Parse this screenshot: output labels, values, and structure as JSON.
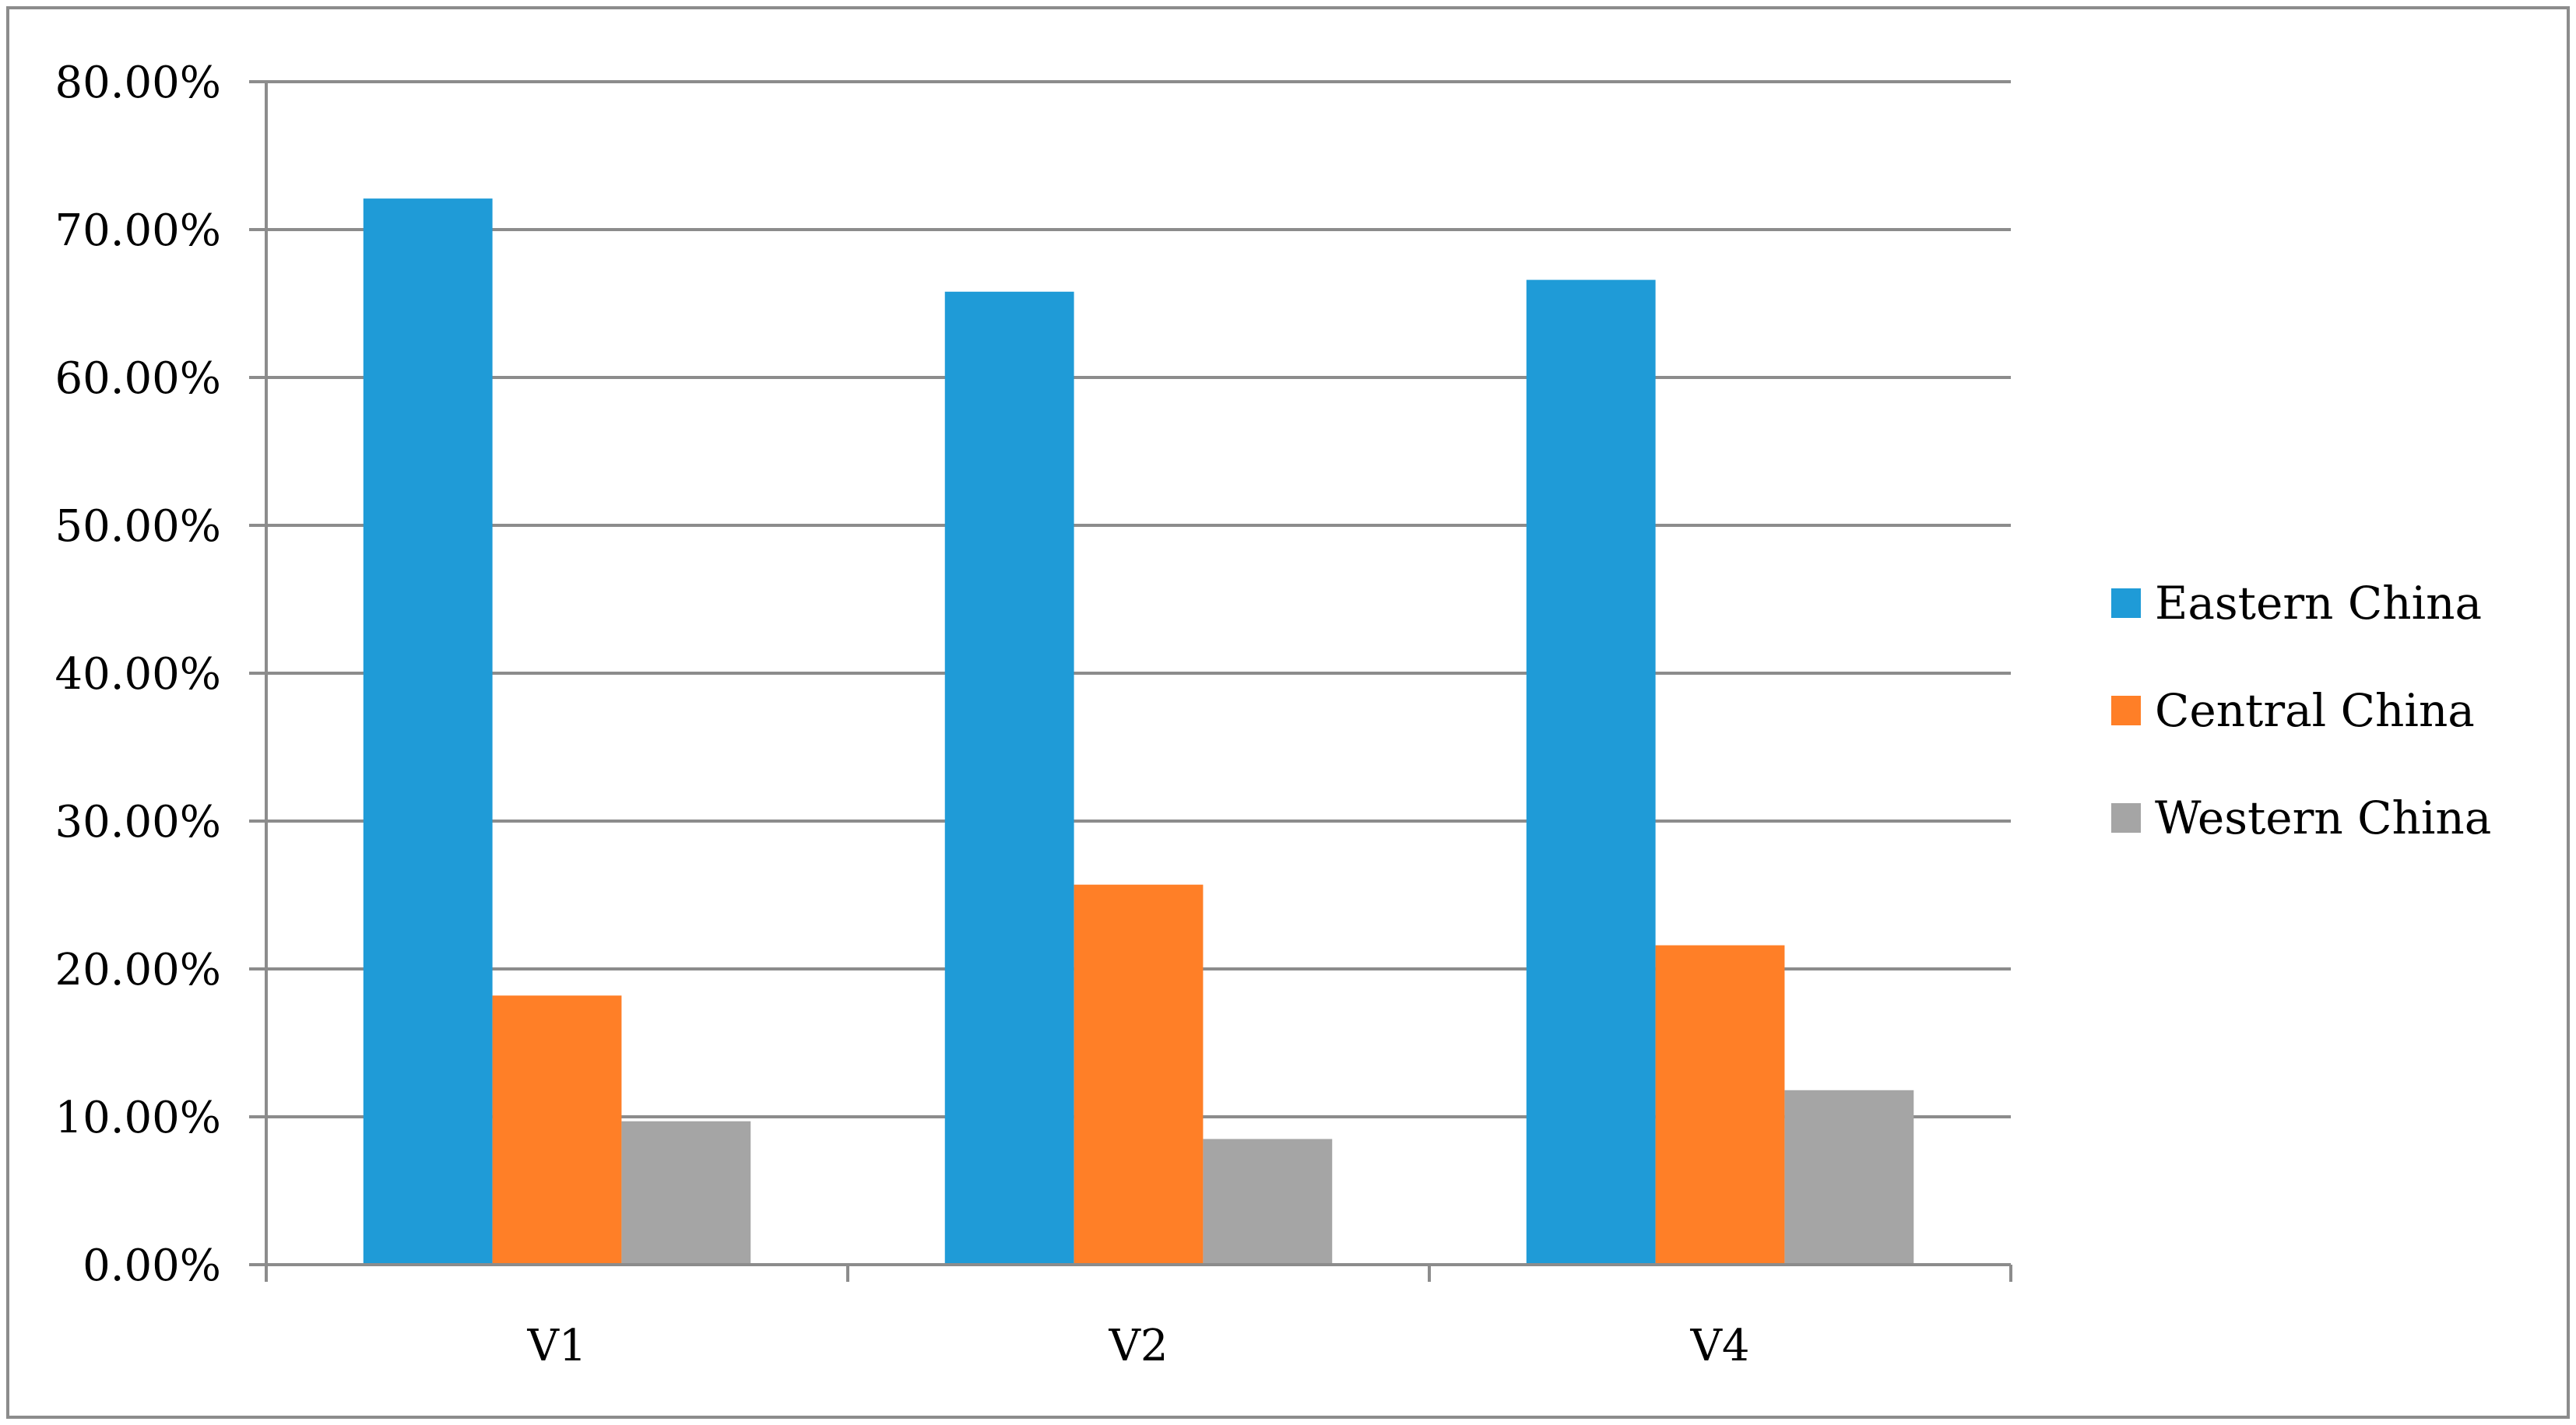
{
  "chart_data": {
    "type": "bar",
    "categories": [
      "V1",
      "V2",
      "V4"
    ],
    "series": [
      {
        "name": "Eastern China",
        "color": "#1f9bd7",
        "values": [
          72.1,
          65.8,
          66.6
        ]
      },
      {
        "name": "Central China",
        "color": "#ff7f27",
        "values": [
          18.2,
          25.7,
          21.6
        ]
      },
      {
        "name": "Western China",
        "color": "#a5a5a5",
        "values": [
          9.7,
          8.5,
          11.8
        ]
      }
    ],
    "ylim": [
      0,
      80
    ],
    "yticks": [
      "0.00%",
      "10.00%",
      "20.00%",
      "30.00%",
      "40.00%",
      "50.00%",
      "60.00%",
      "70.00%",
      "80.00%"
    ],
    "ytick_values": [
      0,
      10,
      20,
      30,
      40,
      50,
      60,
      70,
      80
    ],
    "grid": true,
    "legend_position": "right",
    "title": "",
    "xlabel": "",
    "ylabel": ""
  }
}
